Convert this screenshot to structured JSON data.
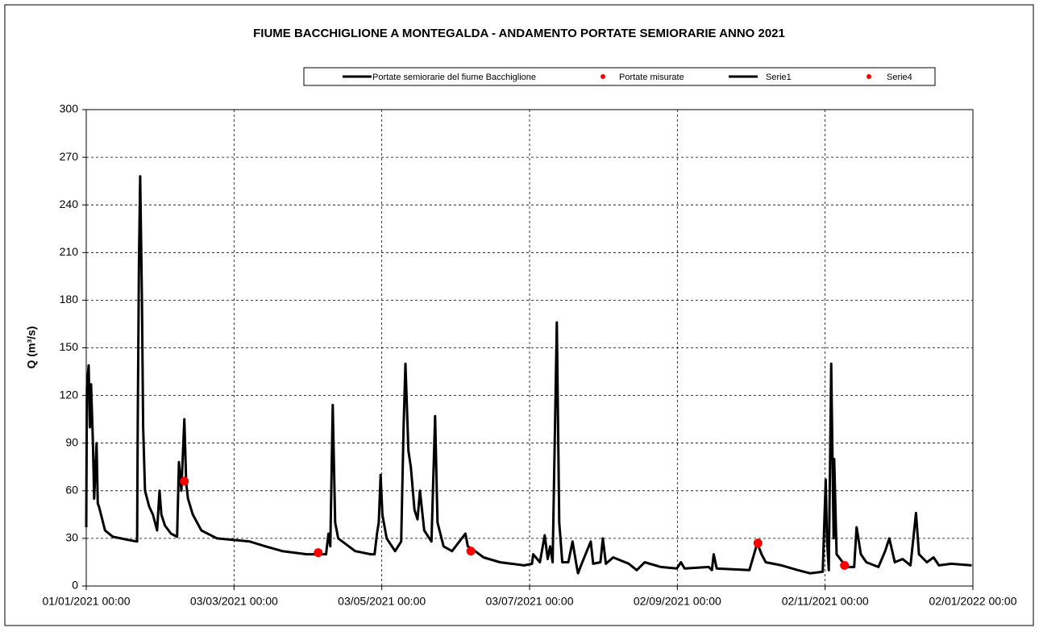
{
  "chart_data": {
    "type": "line",
    "title": "FIUME BACCHIGLIONE A MONTEGALDA - ANDAMENTO PORTATE SEMIORARIE ANNO 2021",
    "y_label": "Q (m³/s)",
    "ylim": [
      0,
      300
    ],
    "yticks": [
      0,
      30,
      60,
      90,
      120,
      150,
      180,
      210,
      240,
      270,
      300
    ],
    "xlim": [
      "01/01/2021 00:00",
      "02/01/2022 00:00"
    ],
    "xticks": [
      "01/01/2021 00:00",
      "03/03/2021 00:00",
      "03/05/2021 00:00",
      "03/07/2021 00:00",
      "02/09/2021 00:00",
      "02/11/2021 00:00",
      "02/01/2022 00:00"
    ],
    "grid": true,
    "legend": "top",
    "series": [
      {
        "name": "Portate semiorarie del fiume Bacchiglione",
        "type": "line",
        "color": "#000000",
        "x": [
          "01/01/2021 00:00",
          "01/01/2021 06:00",
          "02/01/2021 00:00",
          "02/01/2021 12:00",
          "03/01/2021 00:00",
          "03/01/2021 18:00",
          "04/01/2021 06:00",
          "05/01/2021 06:00",
          "05/01/2021 18:00",
          "06/01/2021 06:00",
          "08/01/2021 18:00",
          "12/01/2021 00:00",
          "18/01/2021 12:00",
          "22/01/2021 00:00",
          "22/01/2021 06:00",
          "22/01/2021 18:00",
          "23/01/2021 06:00",
          "24/01/2021 00:00",
          "24/01/2021 12:00",
          "25/01/2021 06:00",
          "27/01/2021 00:00",
          "28/01/2021 12:00",
          "30/01/2021 06:00",
          "31/01/2021 06:00",
          "01/02/2021 00:00",
          "02/02/2021 12:00",
          "05/02/2021 00:00",
          "07/02/2021 12:00",
          "08/02/2021 06:00",
          "09/02/2021 06:00",
          "10/02/2021 12:00",
          "11/02/2021 06:00",
          "12/02/2021 00:00",
          "14/02/2021 00:00",
          "17/02/2021 12:00",
          "24/02/2021 00:00",
          "03/03/2021 00:00",
          "09/03/2021 12:00",
          "16/03/2021 00:00",
          "23/03/2021 00:00",
          "02/04/2021 00:00",
          "10/04/2021 00:00",
          "11/04/2021 00:00",
          "11/04/2021 18:00",
          "12/04/2021 18:00",
          "13/04/2021 18:00",
          "15/04/2021 00:00",
          "22/04/2021 00:00",
          "28/04/2021 12:00",
          "30/04/2021 00:00",
          "01/05/2021 00:00",
          "01/05/2021 18:00",
          "02/05/2021 12:00",
          "03/05/2021 06:00",
          "05/05/2021 00:00",
          "08/05/2021 12:00",
          "11/05/2021 00:00",
          "12/05/2021 00:00",
          "12/05/2021 18:00",
          "14/05/2021 00:00",
          "15/05/2021 00:00",
          "16/05/2021 12:00",
          "17/05/2021 18:00",
          "18/05/2021 18:00",
          "20/05/2021 12:00",
          "23/05/2021 12:00",
          "25/05/2021 00:00",
          "26/05/2021 00:00",
          "28/05/2021 12:00",
          "01/06/2021 00:00",
          "06/06/2021 12:00",
          "07/06/2021 12:00",
          "10/06/2021 12:00",
          "14/06/2021 00:00",
          "20/06/2021 18:00",
          "30/06/2021 18:00",
          "04/07/2021 00:00",
          "04/07/2021 12:00",
          "07/07/2021 06:00",
          "09/07/2021 06:00",
          "10/07/2021 12:00",
          "11/07/2021 12:00",
          "12/07/2021 12:00",
          "14/07/2021 06:00",
          "15/07/2021 06:00",
          "16/07/2021 12:00",
          "19/07/2021 00:00",
          "20/07/2021 18:00",
          "22/07/2021 12:00",
          "23/07/2021 00:00",
          "24/07/2021 18:00",
          "28/07/2021 06:00",
          "29/07/2021 06:00",
          "01/08/2021 06:00",
          "02/08/2021 06:00",
          "03/08/2021 12:00",
          "06/08/2021 12:00",
          "13/08/2021 00:00",
          "16/08/2021 06:00",
          "19/08/2021 12:00",
          "26/08/2021 06:00",
          "01/09/2021 18:00",
          "03/09/2021 12:00",
          "05/09/2021 00:00",
          "15/09/2021 00:00",
          "16/09/2021 06:00",
          "17/09/2021 00:00",
          "18/09/2021 06:00",
          "01/10/2021 18:00",
          "05/10/2021 00:00",
          "06/10/2021 18:00",
          "08/10/2021 12:00",
          "15/10/2021 00:00",
          "21/10/2021 18:00",
          "26/10/2021 18:00",
          "01/11/2021 00:00",
          "02/11/2021 06:00",
          "02/11/2021 18:00",
          "03/11/2021 12:00",
          "04/11/2021 12:00",
          "05/11/2021 12:00",
          "05/11/2021 18:00",
          "06/11/2021 18:00",
          "09/11/2021 06:00",
          "10/11/2021 18:00",
          "14/11/2021 00:00",
          "15/11/2021 00:00",
          "16/11/2021 18:00",
          "19/11/2021 00:00",
          "24/11/2021 00:00",
          "26/11/2021 18:00",
          "28/11/2021 12:00",
          "30/11/2021 18:00",
          "04/12/2021 00:00",
          "07/12/2021 06:00",
          "09/12/2021 12:00",
          "10/12/2021 18:00",
          "14/12/2021 00:00",
          "16/12/2021 18:00",
          "19/12/2021 00:00",
          "24/12/2021 00:00",
          "01/01/2022 12:00"
        ],
        "values": [
          37,
          125,
          139,
          100,
          127,
          90,
          55,
          90,
          52,
          50,
          35,
          31,
          29,
          28,
          103,
          205,
          258,
          180,
          100,
          60,
          50,
          45,
          35,
          60,
          45,
          38,
          33,
          31,
          78,
          60,
          105,
          65,
          55,
          45,
          35,
          30,
          29,
          28,
          25,
          22,
          20,
          20,
          33,
          25,
          114,
          40,
          30,
          22,
          20,
          20,
          33,
          40,
          70,
          45,
          30,
          22,
          28,
          100,
          140,
          85,
          75,
          48,
          42,
          60,
          35,
          28,
          107,
          40,
          25,
          22,
          33,
          25,
          22,
          18,
          15,
          13,
          14,
          20,
          15,
          32,
          17,
          25,
          15,
          166,
          40,
          15,
          15,
          28,
          12,
          8,
          15,
          28,
          14,
          15,
          30,
          14,
          18,
          14,
          10,
          15,
          12,
          11,
          15,
          11,
          12,
          10,
          20,
          11,
          10,
          27,
          20,
          15,
          13,
          10,
          8,
          9,
          67,
          30,
          10,
          140,
          30,
          80,
          20,
          15,
          12,
          12,
          37,
          20,
          15,
          12,
          22,
          30,
          15,
          17,
          13,
          46,
          20,
          15,
          18,
          13,
          14,
          13
        ]
      },
      {
        "name": "Portate misurate",
        "type": "scatter",
        "color": "#ff0000",
        "x": [
          "10/02/2021 12:00",
          "06/04/2021 18:00",
          "08/06/2021 18:00",
          "05/10/2021 06:00",
          "10/11/2021 00:00"
        ],
        "values": [
          66,
          21,
          22,
          27,
          13
        ]
      },
      {
        "name": "Serie1",
        "type": "line",
        "color": "#000000",
        "x": [],
        "values": []
      },
      {
        "name": "Serie4",
        "type": "scatter",
        "color": "#ff0000",
        "x": [],
        "values": []
      }
    ]
  }
}
